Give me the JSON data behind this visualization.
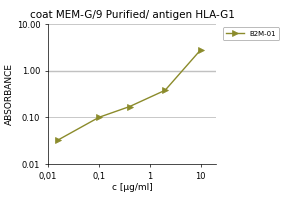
{
  "title": "coat MEM-G/9 Purified/ antigen HLA-G1",
  "xlabel": "c [µg/ml]",
  "ylabel": "ABSORBANCE",
  "x_data": [
    0.016,
    0.1,
    0.4,
    2,
    10
  ],
  "y_data": [
    0.033,
    0.1,
    0.17,
    0.38,
    2.8
  ],
  "xlim": [
    0.01,
    20
  ],
  "ylim": [
    0.01,
    10
  ],
  "line_color": "#8b8b2b",
  "marker_color": "#8b8b2b",
  "legend_label": "B2M-01",
  "bg_color": "#ffffff",
  "grid_color": "#c8c8c8",
  "x_ticks": [
    0.01,
    0.1,
    1,
    10
  ],
  "x_tick_labels": [
    "0,01",
    "0,1",
    "1",
    "10"
  ],
  "y_ticks": [
    0.01,
    0.1,
    1.0,
    10.0
  ],
  "y_tick_labels": [
    "0.01",
    "0.10",
    "1.00",
    "10.00"
  ],
  "title_fontsize": 7.5,
  "label_fontsize": 6.5,
  "tick_fontsize": 6
}
